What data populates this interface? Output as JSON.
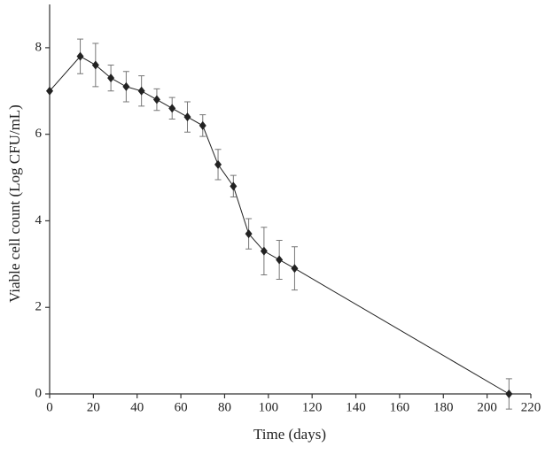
{
  "chart_data": {
    "type": "line",
    "x_label": "Time (days)",
    "y_label": "Viable cell count (Log CFU/mL)",
    "x": [
      0,
      14,
      21,
      28,
      35,
      42,
      49,
      56,
      63,
      70,
      77,
      84,
      91,
      98,
      105,
      112,
      210
    ],
    "series": [
      {
        "color": "#222222",
        "values": [
          7.0,
          7.8,
          7.6,
          7.3,
          7.1,
          7.0,
          6.8,
          6.6,
          6.4,
          6.2,
          5.3,
          4.8,
          3.7,
          3.3,
          3.1,
          2.9,
          0
        ],
        "errors": [
          0,
          0.4,
          0.5,
          0.3,
          0.35,
          0.35,
          0.25,
          0.25,
          0.35,
          0.25,
          0.35,
          0.25,
          0.35,
          0.55,
          0.45,
          0.5,
          0.35
        ]
      }
    ],
    "xlim": [
      0,
      220
    ],
    "xticks": [
      0,
      20,
      40,
      60,
      80,
      100,
      120,
      140,
      160,
      180,
      200,
      220
    ],
    "ylim": [
      0,
      9
    ],
    "yticks": [
      0,
      2,
      4,
      6,
      8
    ]
  }
}
